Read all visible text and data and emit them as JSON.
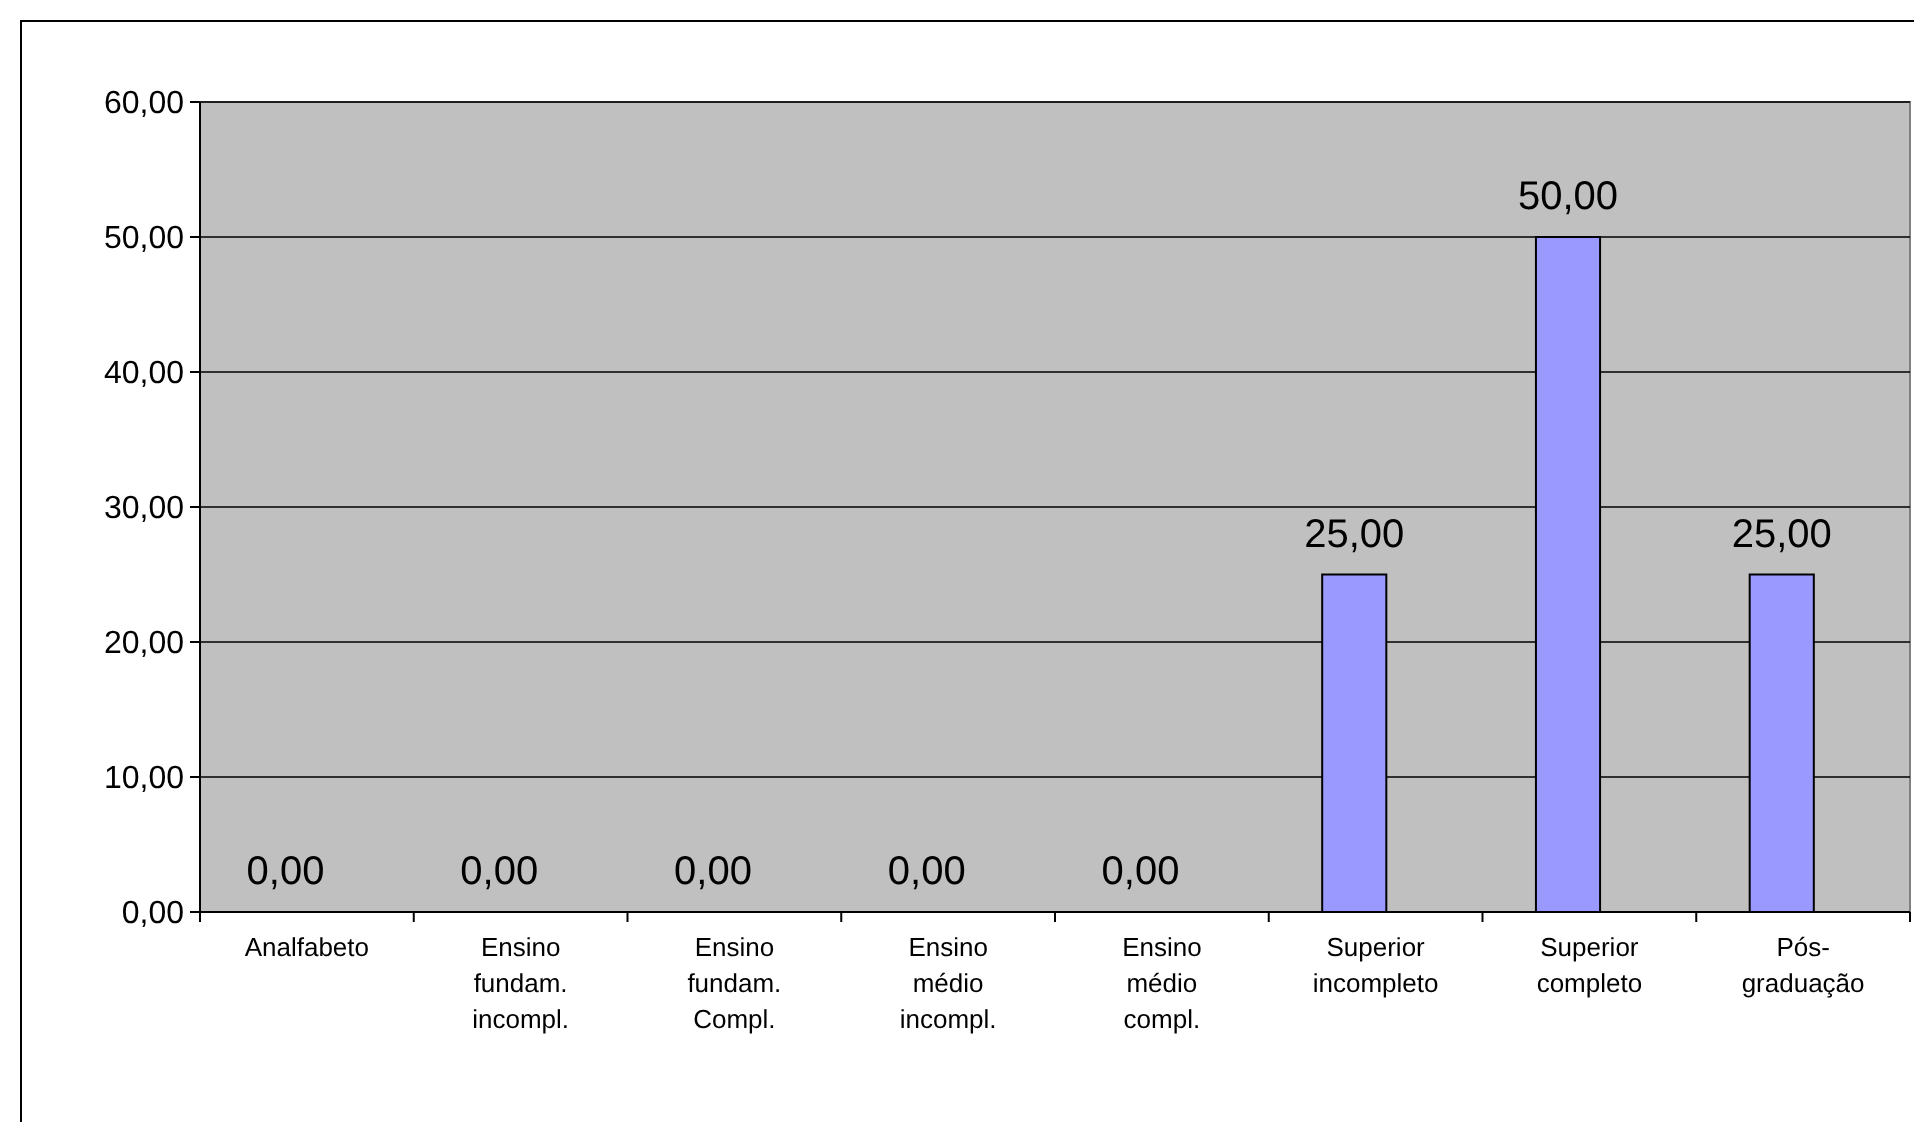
{
  "chart_data": {
    "type": "bar",
    "categories": [
      "Analfabeto",
      "Ensino fundam. incompl.",
      "Ensino fundam. Compl.",
      "Ensino médio incompl.",
      "Ensino médio compl.",
      "Superior incompleto",
      "Superior completo",
      "Pós-graduação"
    ],
    "values": [
      0,
      0,
      0,
      0,
      0,
      25,
      50,
      25
    ],
    "value_labels": [
      "0,00",
      "0,00",
      "0,00",
      "0,00",
      "0,00",
      "25,00",
      "50,00",
      "25,00"
    ],
    "color": "#9999ff",
    "ylim": [
      0,
      60
    ],
    "yticks": [
      {
        "value": 0,
        "label": "0,00"
      },
      {
        "value": 10,
        "label": "10,00"
      },
      {
        "value": 20,
        "label": "20,00"
      },
      {
        "value": 30,
        "label": "30,00"
      },
      {
        "value": 40,
        "label": "40,00"
      },
      {
        "value": 50,
        "label": "50,00"
      },
      {
        "value": 60,
        "label": "60,00"
      }
    ],
    "grid": "y"
  }
}
